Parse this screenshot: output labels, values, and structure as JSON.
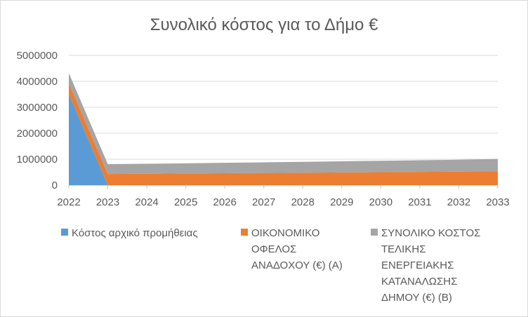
{
  "chart_data": {
    "type": "area",
    "stacked": true,
    "title": "Συνολικό κόστος για το Δήμο €",
    "xlabel": "",
    "ylabel": "",
    "x": [
      "2022",
      "2023",
      "2024",
      "2025",
      "2026",
      "2027",
      "2028",
      "2029",
      "2030",
      "2031",
      "2032",
      "2033"
    ],
    "ylim": [
      0,
      5000000
    ],
    "yticks": [
      "0",
      "1000000",
      "2000000",
      "3000000",
      "4000000",
      "5000000"
    ],
    "grid": true,
    "legend": "bottom",
    "series": [
      {
        "name": "Κόστος αρχικό προμήθειας",
        "color": "#5b9bd5",
        "values": [
          3500000,
          0,
          0,
          0,
          0,
          0,
          0,
          0,
          0,
          0,
          0,
          0
        ]
      },
      {
        "name": "ΟΙΚΟΝΟΜΙΚΟ ΟΦΕΛΟΣ ΑΝΑΔΟΧΟΥ (€) (Α)",
        "color": "#ed7d31",
        "values": [
          420000,
          430000,
          440000,
          450000,
          460000,
          470000,
          480000,
          490000,
          500000,
          510000,
          520000,
          530000
        ]
      },
      {
        "name": "ΣΥΝΟΛΙΚΟ ΚΟΣΤΟΣ ΤΕΛΙΚΗΣ ΕΝΕΡΓΕΙΑΚΗΣ ΚΑΤΑΝΑΛΩΣΗΣ ΔΗΜΟΥ (€) (Β)",
        "color": "#a5a5a5",
        "values": [
          400000,
          380000,
          385000,
          390000,
          400000,
          410000,
          420000,
          430000,
          440000,
          450000,
          460000,
          480000
        ]
      }
    ]
  }
}
